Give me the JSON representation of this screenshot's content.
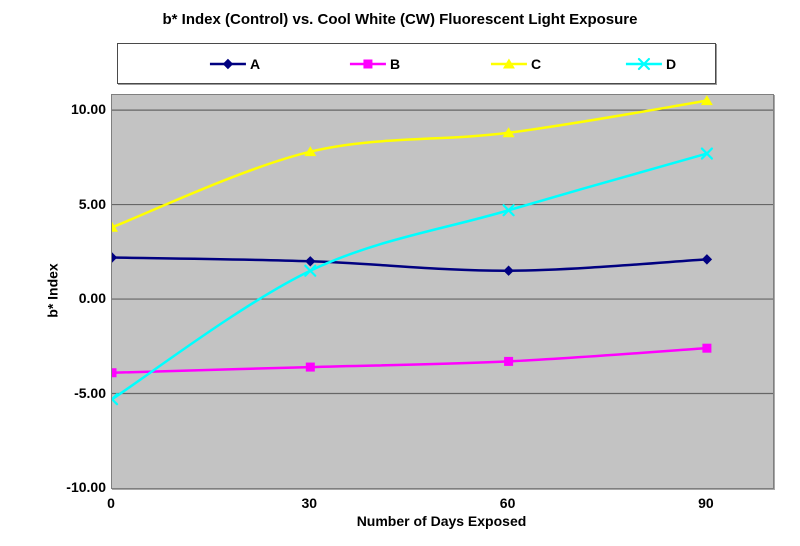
{
  "title": "b* Index (Control) vs. Cool White (CW) Fluorescent Light Exposure",
  "chart_data": {
    "type": "line",
    "title": "b* Index (Control) vs. Cool White (CW) Fluorescent Light Exposure",
    "xlabel": "Number of Days Exposed",
    "ylabel": "b* Index",
    "x": [
      0,
      30,
      60,
      90
    ],
    "series": [
      {
        "name": "A",
        "values": [
          2.2,
          2.0,
          1.5,
          2.1
        ],
        "color": "#000080",
        "marker": "diamond"
      },
      {
        "name": "B",
        "values": [
          -3.9,
          -3.6,
          -3.3,
          -2.6
        ],
        "color": "#ff00ff",
        "marker": "square"
      },
      {
        "name": "C",
        "values": [
          3.8,
          7.8,
          8.8,
          10.5
        ],
        "color": "#ffff00",
        "marker": "triangle"
      },
      {
        "name": "D",
        "values": [
          -5.3,
          1.5,
          4.7,
          7.7
        ],
        "color": "#00ffff",
        "marker": "x"
      }
    ],
    "x_ticks": [
      "0",
      "30",
      "60",
      "90"
    ],
    "y_ticks": [
      {
        "value": 10,
        "label": "10.00"
      },
      {
        "value": 5,
        "label": "5.00"
      },
      {
        "value": 0,
        "label": "0.00"
      },
      {
        "value": -5,
        "label": "-5.00"
      },
      {
        "value": -10,
        "label": "-10.00"
      }
    ],
    "xlim": [
      0,
      100
    ],
    "ylim": [
      -10,
      10.8
    ],
    "grid": true,
    "legend_position": "top",
    "plot_bg": "#c3c3c3",
    "grid_color": "#666666",
    "smooth_lines": true
  }
}
